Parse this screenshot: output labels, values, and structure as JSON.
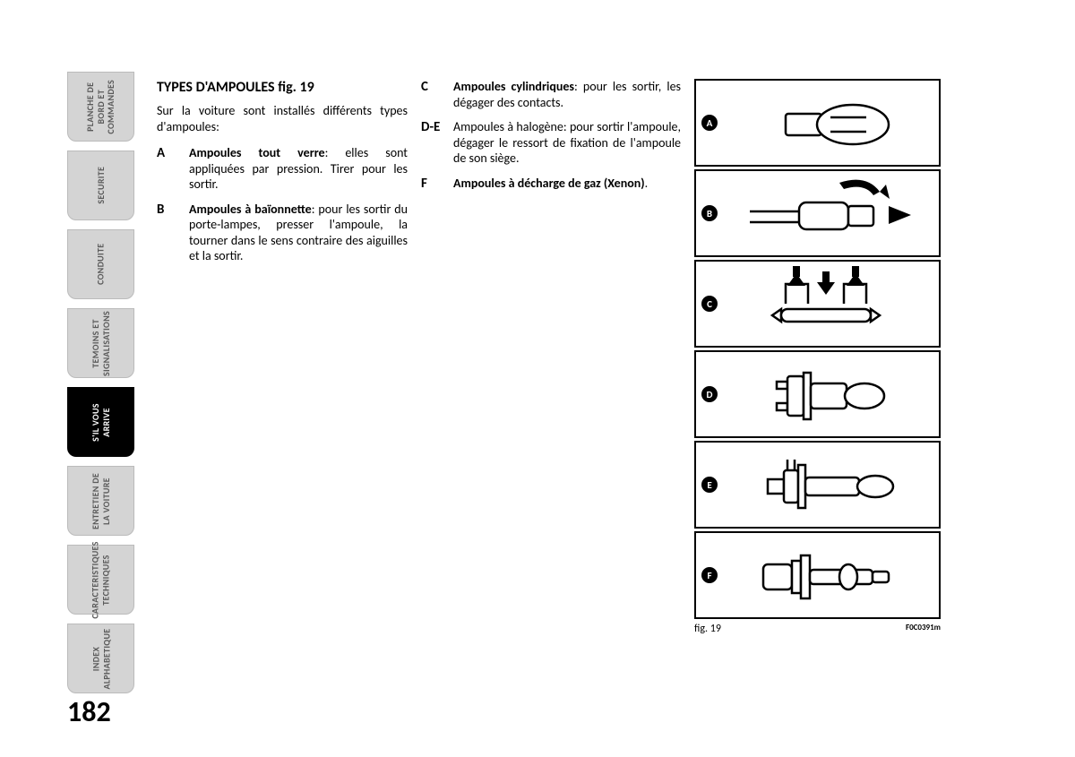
{
  "page_number": "182",
  "tabs": [
    {
      "label": "PLANCHE DE\nBORD ET\nCOMMANDES",
      "active": false
    },
    {
      "label": "SECURITE",
      "active": false
    },
    {
      "label": "CONDUITE",
      "active": false
    },
    {
      "label": "TEMOINS ET\nSIGNALISATIONS",
      "active": false
    },
    {
      "label": "S'IL VOUS\nARRIVE",
      "active": true
    },
    {
      "label": "ENTRETIEN DE\nLA VOITURE",
      "active": false
    },
    {
      "label": "CARACTERISTIQUES\nTECHNIQUES",
      "active": false
    },
    {
      "label": "INDEX\nALPHABETIQUE",
      "active": false
    }
  ],
  "col1": {
    "heading": "TYPES D'AMPOULES fig. 19",
    "intro": "Sur la voiture sont installés différents types d'ampoules:",
    "items": [
      {
        "letter": "A",
        "bold": "Ampoules tout verre",
        "text": ": elles sont appliquées par pression. Tirer pour les sortir."
      },
      {
        "letter": "B",
        "bold": "Ampoules à baïonnette",
        "text": ": pour les sortir du porte-lampes, presser l'ampoule, la tourner dans le sens contraire des aiguilles et la sortir."
      }
    ]
  },
  "col2": {
    "items": [
      {
        "letter": "C",
        "bold": "Ampoules cylindriques",
        "text": ": pour les sortir, les dégager des contacts."
      },
      {
        "letter": "D-E",
        "bold": "",
        "text": "Ampoules à halogène: pour sortir l'ampoule, dégager le ressort de fixation de l'ampoule de son siège."
      },
      {
        "letter": "F",
        "bold": "Ampoules à décharge de gaz (Xenon)",
        "text": "."
      }
    ]
  },
  "figure": {
    "panels": [
      "A",
      "B",
      "C",
      "D",
      "E",
      "F"
    ],
    "caption_left": "fig. 19",
    "caption_right": "F0C0391m"
  }
}
